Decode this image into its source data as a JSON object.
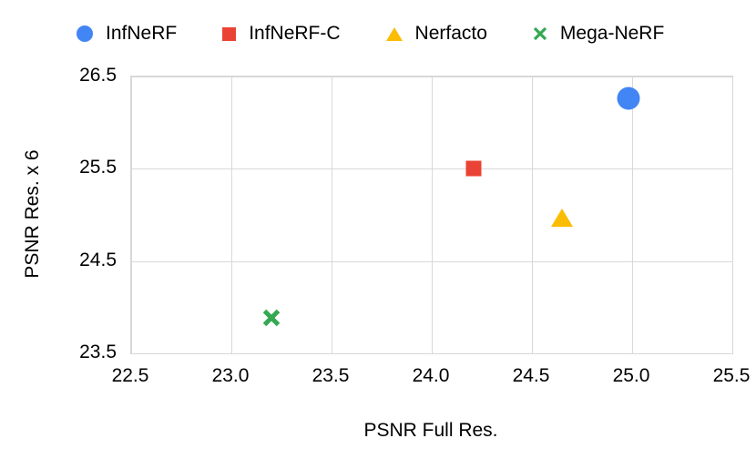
{
  "chart_data": {
    "type": "scatter",
    "xlabel": "PSNR Full Res.",
    "ylabel": "PSNR Res. x 6",
    "xlim": [
      22.5,
      25.5
    ],
    "ylim": [
      23.5,
      26.5
    ],
    "grid": true,
    "legend_position": "top",
    "grid_color": "#d8d8d8",
    "text_color": "#000000",
    "background_color": "#ffffff",
    "x_ticks": [
      {
        "v": 22.5,
        "label": "22.5"
      },
      {
        "v": 23.0,
        "label": "23.0"
      },
      {
        "v": 23.5,
        "label": "23.5"
      },
      {
        "v": 24.0,
        "label": "24.0"
      },
      {
        "v": 24.5,
        "label": "24.5"
      },
      {
        "v": 25.0,
        "label": "25.0"
      },
      {
        "v": 25.5,
        "label": "25.5"
      }
    ],
    "y_ticks": [
      {
        "v": 23.5,
        "label": "23.5"
      },
      {
        "v": 24.5,
        "label": "24.5"
      },
      {
        "v": 25.5,
        "label": "25.5"
      },
      {
        "v": 26.5,
        "label": "26.5"
      }
    ],
    "series": [
      {
        "name": "InfNeRF",
        "marker": "circle",
        "color": "#4285F4",
        "points": [
          {
            "x": 24.98,
            "y": 26.26
          }
        ]
      },
      {
        "name": "InfNeRF-C",
        "marker": "square",
        "color": "#EA4335",
        "points": [
          {
            "x": 24.21,
            "y": 25.5
          }
        ]
      },
      {
        "name": "Nerfacto",
        "marker": "triangle",
        "color": "#FBBC04",
        "points": [
          {
            "x": 24.65,
            "y": 24.97
          }
        ]
      },
      {
        "name": "Mega-NeRF",
        "marker": "x",
        "color": "#34A853",
        "points": [
          {
            "x": 23.2,
            "y": 23.88
          }
        ]
      }
    ]
  }
}
